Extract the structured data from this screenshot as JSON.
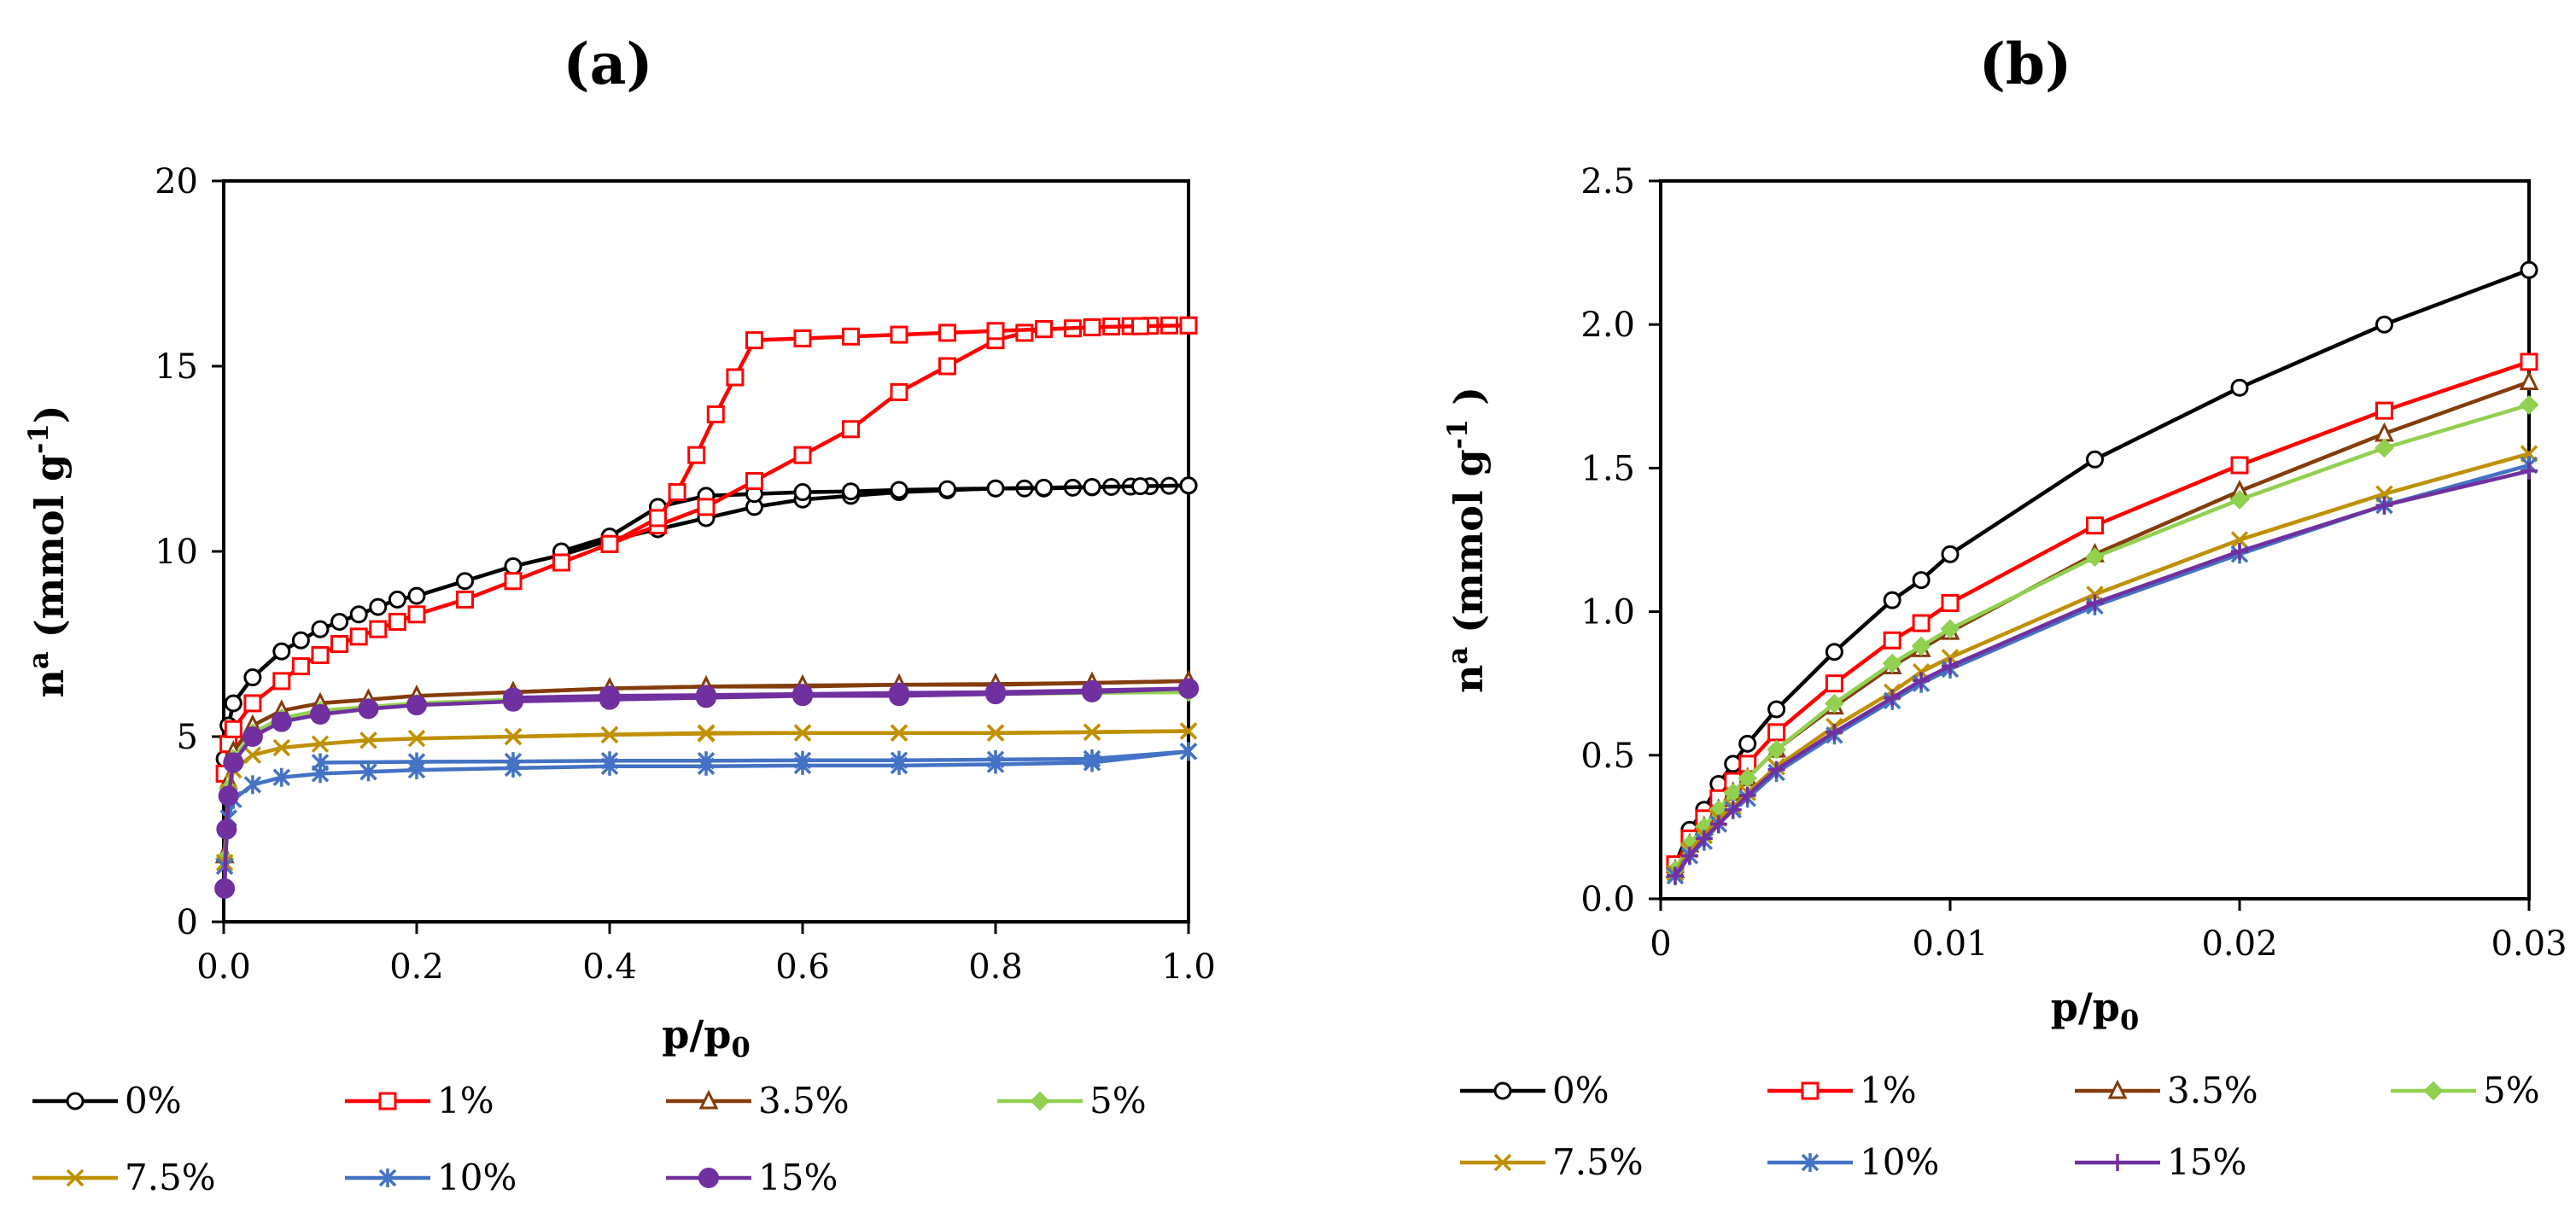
{
  "chart_data": [
    {
      "type": "line",
      "title": "(a)",
      "xlabel": "p/p0",
      "xlabel_main": "p/p",
      "xlabel_sub": "0",
      "ylabel": "na (mmol g-1)",
      "ylabel_main": "n",
      "ylabel_sup": "a",
      "ylabel_mid": " (mmol g",
      "ylabel_sup2": "-1",
      "ylabel_end": ")",
      "xlim": [
        0,
        1.0
      ],
      "ylim": [
        0,
        20
      ],
      "xticks": [
        "0.0",
        "0.2",
        "0.4",
        "0.6",
        "0.8",
        "1.0"
      ],
      "xtick_values": [
        0,
        0.2,
        0.4,
        0.6,
        0.8,
        1.0
      ],
      "yticks": [
        "0",
        "5",
        "10",
        "15",
        "20"
      ],
      "ytick_values": [
        0,
        5,
        10,
        15,
        20
      ],
      "series": [
        {
          "name": "0%",
          "color": "#000000",
          "marker": "circle-open",
          "adsorption": {
            "x": [
              0.001,
              0.005,
              0.01,
              0.03,
              0.06,
              0.08,
              0.1,
              0.12,
              0.14,
              0.16,
              0.18,
              0.2,
              0.25,
              0.3,
              0.35,
              0.4,
              0.45,
              0.5,
              0.55,
              0.6,
              0.65,
              0.7,
              0.75,
              0.8,
              0.83,
              0.85,
              0.88,
              0.9,
              0.92,
              0.94,
              0.96,
              0.98,
              1.0
            ],
            "y": [
              4.4,
              5.3,
              5.9,
              6.6,
              7.3,
              7.6,
              7.9,
              8.1,
              8.3,
              8.5,
              8.7,
              8.8,
              9.2,
              9.6,
              9.9,
              10.3,
              10.6,
              10.9,
              11.2,
              11.4,
              11.5,
              11.6,
              11.65,
              11.7,
              11.7,
              11.7,
              11.72,
              11.73,
              11.74,
              11.75,
              11.76,
              11.77,
              11.78
            ]
          },
          "desorption": {
            "x": [
              1.0,
              0.95,
              0.9,
              0.85,
              0.8,
              0.75,
              0.7,
              0.65,
              0.6,
              0.55,
              0.5,
              0.45,
              0.4,
              0.35
            ],
            "y": [
              11.78,
              11.76,
              11.74,
              11.72,
              11.7,
              11.68,
              11.66,
              11.62,
              11.6,
              11.55,
              11.5,
              11.2,
              10.4,
              10.0
            ]
          }
        },
        {
          "name": "1%",
          "color": "#ff0000",
          "marker": "square-open",
          "adsorption": {
            "x": [
              0.001,
              0.005,
              0.01,
              0.03,
              0.06,
              0.08,
              0.1,
              0.12,
              0.14,
              0.16,
              0.18,
              0.2,
              0.25,
              0.3,
              0.35,
              0.4,
              0.45,
              0.5,
              0.55,
              0.6,
              0.65,
              0.7,
              0.75,
              0.8,
              0.83,
              0.85,
              0.88,
              0.9,
              0.92,
              0.94,
              0.96,
              0.98,
              1.0
            ],
            "y": [
              4.0,
              4.8,
              5.2,
              5.9,
              6.5,
              6.9,
              7.2,
              7.5,
              7.7,
              7.9,
              8.1,
              8.3,
              8.7,
              9.2,
              9.7,
              10.2,
              10.7,
              11.2,
              11.9,
              12.6,
              13.3,
              14.3,
              15.0,
              15.7,
              15.9,
              16.0,
              16.02,
              16.05,
              16.07,
              16.08,
              16.09,
              16.1,
              16.1
            ]
          },
          "desorption": {
            "x": [
              1.0,
              0.95,
              0.9,
              0.85,
              0.8,
              0.75,
              0.7,
              0.65,
              0.6,
              0.55,
              0.53,
              0.51,
              0.49,
              0.47,
              0.45,
              0.4
            ],
            "y": [
              16.1,
              16.08,
              16.05,
              16.0,
              15.95,
              15.9,
              15.85,
              15.8,
              15.75,
              15.7,
              14.7,
              13.7,
              12.6,
              11.6,
              10.9,
              10.2
            ]
          }
        },
        {
          "name": "3.5%",
          "color": "#843c0c",
          "marker": "triangle-open",
          "adsorption": {
            "x": [
              0.001,
              0.005,
              0.01,
              0.03,
              0.06,
              0.1,
              0.15,
              0.2,
              0.3,
              0.4,
              0.5,
              0.6,
              0.7,
              0.8,
              0.9,
              1.0
            ],
            "y": [
              1.8,
              3.8,
              4.6,
              5.3,
              5.7,
              5.9,
              6.0,
              6.1,
              6.2,
              6.3,
              6.35,
              6.35,
              6.4,
              6.4,
              6.45,
              6.5
            ]
          },
          "desorption": {
            "x": [
              1.0,
              0.9,
              0.8,
              0.7,
              0.6,
              0.5,
              0.4,
              0.3
            ],
            "y": [
              6.5,
              6.45,
              6.42,
              6.4,
              6.38,
              6.35,
              6.3,
              6.2
            ]
          }
        },
        {
          "name": "5%",
          "color": "#92d050",
          "marker": "diamond-filled",
          "adsorption": {
            "x": [
              0.001,
              0.005,
              0.01,
              0.03,
              0.06,
              0.1,
              0.15,
              0.2,
              0.3,
              0.4,
              0.5,
              0.6,
              0.7,
              0.8,
              0.9,
              1.0
            ],
            "y": [
              1.7,
              3.6,
              4.4,
              5.1,
              5.5,
              5.7,
              5.8,
              5.9,
              6.0,
              6.05,
              6.1,
              6.1,
              6.15,
              6.15,
              6.2,
              6.2
            ]
          },
          "desorption": {
            "x": [
              1.0,
              0.9,
              0.8,
              0.7,
              0.6,
              0.5,
              0.4,
              0.3
            ],
            "y": [
              6.2,
              6.18,
              6.15,
              6.12,
              6.1,
              6.08,
              6.05,
              6.0
            ]
          }
        },
        {
          "name": "7.5%",
          "color": "#bf9000",
          "marker": "x",
          "adsorption": {
            "x": [
              0.001,
              0.005,
              0.01,
              0.03,
              0.06,
              0.1,
              0.15,
              0.2,
              0.3,
              0.4,
              0.5,
              0.6,
              0.7,
              0.8,
              0.9,
              1.0
            ],
            "y": [
              1.6,
              3.5,
              4.1,
              4.5,
              4.7,
              4.8,
              4.9,
              4.95,
              5.0,
              5.05,
              5.1,
              5.1,
              5.1,
              5.1,
              5.12,
              5.15
            ]
          },
          "desorption": {
            "x": [
              1.0,
              0.9,
              0.8,
              0.7,
              0.6,
              0.5,
              0.4,
              0.3
            ],
            "y": [
              5.15,
              5.12,
              5.1,
              5.1,
              5.1,
              5.08,
              5.05,
              5.0
            ]
          }
        },
        {
          "name": "10%",
          "color": "#4472c4",
          "marker": "star",
          "adsorption": {
            "x": [
              0.001,
              0.005,
              0.01,
              0.03,
              0.06,
              0.1,
              0.15,
              0.2,
              0.3,
              0.4,
              0.5,
              0.6,
              0.7,
              0.8,
              0.9,
              1.0
            ],
            "y": [
              1.5,
              2.8,
              3.3,
              3.7,
              3.9,
              4.0,
              4.05,
              4.1,
              4.15,
              4.2,
              4.2,
              4.22,
              4.22,
              4.25,
              4.3,
              4.6
            ]
          },
          "desorption": {
            "x": [
              1.0,
              0.9,
              0.8,
              0.7,
              0.6,
              0.5,
              0.4,
              0.3,
              0.2,
              0.1
            ],
            "y": [
              4.6,
              4.4,
              4.38,
              4.36,
              4.36,
              4.35,
              4.35,
              4.33,
              4.32,
              4.3
            ]
          }
        },
        {
          "name": "15%",
          "color": "#7030a0",
          "marker": "circle-filled",
          "adsorption": {
            "x": [
              0.001,
              0.003,
              0.005,
              0.01,
              0.03,
              0.06,
              0.1,
              0.15,
              0.2,
              0.3,
              0.4,
              0.5,
              0.6,
              0.7,
              0.8,
              0.9,
              1.0
            ],
            "y": [
              0.9,
              2.5,
              3.4,
              4.3,
              5.0,
              5.4,
              5.6,
              5.75,
              5.85,
              5.95,
              6.0,
              6.05,
              6.1,
              6.1,
              6.15,
              6.2,
              6.3
            ]
          },
          "desorption": {
            "x": [
              1.0,
              0.9,
              0.8,
              0.7,
              0.6,
              0.5,
              0.4,
              0.3
            ],
            "y": [
              6.3,
              6.25,
              6.2,
              6.18,
              6.15,
              6.12,
              6.1,
              6.05
            ]
          }
        }
      ],
      "legend": {
        "placement": "bottom",
        "columns": 4
      }
    },
    {
      "type": "line",
      "title": "(b)",
      "xlabel": "p/p0",
      "xlabel_main": "p/p",
      "xlabel_sub": "0",
      "ylabel": "na (mmol g-1 )",
      "ylabel_main": "n",
      "ylabel_sup": "a",
      "ylabel_mid": " (mmol g",
      "ylabel_sup2": "-1",
      "ylabel_end": " )",
      "xlim": [
        0,
        0.03
      ],
      "ylim": [
        0,
        2.5
      ],
      "xticks": [
        "0",
        "0.01",
        "0.02",
        "0.03"
      ],
      "xtick_values": [
        0,
        0.01,
        0.02,
        0.03
      ],
      "yticks": [
        "0.0",
        "0.5",
        "1.0",
        "1.5",
        "2.0",
        "2.5"
      ],
      "ytick_values": [
        0,
        0.5,
        1.0,
        1.5,
        2.0,
        2.5
      ],
      "series": [
        {
          "name": "0%",
          "color": "#000000",
          "marker": "circle-open",
          "x": [
            0.0005,
            0.001,
            0.0015,
            0.002,
            0.0025,
            0.003,
            0.004,
            0.006,
            0.008,
            0.009,
            0.01,
            0.015,
            0.02,
            0.025,
            0.03
          ],
          "y": [
            0.12,
            0.24,
            0.31,
            0.4,
            0.47,
            0.54,
            0.66,
            0.86,
            1.04,
            1.11,
            1.2,
            1.53,
            1.78,
            2.0,
            2.19
          ]
        },
        {
          "name": "1%",
          "color": "#ff0000",
          "marker": "square-open",
          "x": [
            0.0005,
            0.001,
            0.0015,
            0.002,
            0.0025,
            0.003,
            0.004,
            0.006,
            0.008,
            0.009,
            0.01,
            0.015,
            0.02,
            0.025,
            0.03
          ],
          "y": [
            0.12,
            0.21,
            0.28,
            0.35,
            0.41,
            0.47,
            0.58,
            0.75,
            0.9,
            0.96,
            1.03,
            1.3,
            1.51,
            1.7,
            1.87
          ]
        },
        {
          "name": "3.5%",
          "color": "#843c0c",
          "marker": "triangle-open",
          "x": [
            0.0005,
            0.001,
            0.0015,
            0.002,
            0.0025,
            0.003,
            0.004,
            0.006,
            0.008,
            0.009,
            0.01,
            0.015,
            0.02,
            0.025,
            0.03
          ],
          "y": [
            0.1,
            0.19,
            0.25,
            0.31,
            0.37,
            0.42,
            0.52,
            0.67,
            0.81,
            0.87,
            0.93,
            1.2,
            1.42,
            1.62,
            1.8
          ]
        },
        {
          "name": "5%",
          "color": "#92d050",
          "marker": "diamond-filled",
          "x": [
            0.0005,
            0.001,
            0.0015,
            0.002,
            0.0025,
            0.003,
            0.004,
            0.006,
            0.008,
            0.009,
            0.01,
            0.015,
            0.02,
            0.025,
            0.03
          ],
          "y": [
            0.1,
            0.19,
            0.25,
            0.31,
            0.37,
            0.42,
            0.52,
            0.68,
            0.82,
            0.88,
            0.94,
            1.19,
            1.39,
            1.57,
            1.72
          ]
        },
        {
          "name": "7.5%",
          "color": "#bf9000",
          "marker": "x",
          "x": [
            0.0005,
            0.001,
            0.0015,
            0.002,
            0.0025,
            0.003,
            0.004,
            0.006,
            0.008,
            0.009,
            0.01,
            0.015,
            0.02,
            0.025,
            0.03
          ],
          "y": [
            0.09,
            0.17,
            0.22,
            0.28,
            0.32,
            0.37,
            0.46,
            0.6,
            0.72,
            0.79,
            0.84,
            1.06,
            1.25,
            1.41,
            1.55
          ]
        },
        {
          "name": "10%",
          "color": "#4472c4",
          "marker": "star",
          "x": [
            0.0005,
            0.001,
            0.0015,
            0.002,
            0.0025,
            0.003,
            0.004,
            0.006,
            0.008,
            0.009,
            0.01,
            0.015,
            0.02,
            0.025,
            0.03
          ],
          "y": [
            0.08,
            0.15,
            0.2,
            0.26,
            0.31,
            0.35,
            0.44,
            0.57,
            0.69,
            0.75,
            0.8,
            1.02,
            1.2,
            1.37,
            1.51
          ]
        },
        {
          "name": "15%",
          "color": "#7030a0",
          "marker": "plus",
          "x": [
            0.0005,
            0.001,
            0.0015,
            0.002,
            0.0025,
            0.003,
            0.004,
            0.006,
            0.008,
            0.009,
            0.01,
            0.015,
            0.02,
            0.025,
            0.03
          ],
          "y": [
            0.08,
            0.15,
            0.21,
            0.26,
            0.31,
            0.36,
            0.45,
            0.58,
            0.7,
            0.76,
            0.81,
            1.03,
            1.21,
            1.37,
            1.49
          ]
        }
      ],
      "legend": {
        "placement": "bottom",
        "columns": 4
      }
    }
  ]
}
